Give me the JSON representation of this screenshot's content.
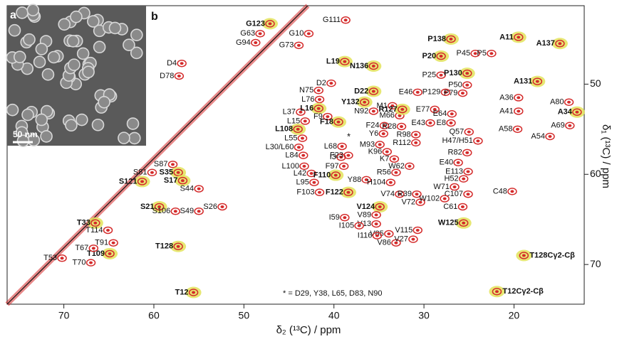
{
  "chart_data": {
    "type": "scatter",
    "xlabel": "δ₂ (¹³C) / ppm",
    "ylabel": "δ₁ (¹³C) / ppm",
    "xlim": [
      76.3,
      12.2
    ],
    "ylim": [
      41.3,
      74.4
    ],
    "xticks": [
      70,
      60,
      50,
      40,
      30,
      20
    ],
    "yticks": [
      50,
      60,
      70
    ],
    "panel_labels": [
      "a",
      "b"
    ],
    "scale_bar": "50 nm",
    "star_label": "*",
    "note": "* = D29, Y38, L65, D83, N90",
    "color": "#d42a2a",
    "highlight_color": "#e3e35a",
    "points": [
      {
        "label": "G123",
        "x": 47.1,
        "y": 43.3,
        "bold": true
      },
      {
        "label": "G111",
        "x": 38.7,
        "y": 42.9
      },
      {
        "label": "G63",
        "x": 48.2,
        "y": 44.4
      },
      {
        "label": "G10",
        "x": 42.8,
        "y": 44.4
      },
      {
        "label": "G94",
        "x": 48.7,
        "y": 45.4
      },
      {
        "label": "G73",
        "x": 43.9,
        "y": 45.7
      },
      {
        "label": "D4",
        "x": 56.9,
        "y": 47.7
      },
      {
        "label": "L19",
        "x": 38.8,
        "y": 47.5,
        "bold": true
      },
      {
        "label": "N136",
        "x": 35.6,
        "y": 48.0,
        "bold": true
      },
      {
        "label": "D78",
        "x": 57.2,
        "y": 49.1
      },
      {
        "label": "D2",
        "x": 40.3,
        "y": 49.9
      },
      {
        "label": "N75",
        "x": 41.7,
        "y": 50.7
      },
      {
        "label": "D22",
        "x": 35.6,
        "y": 50.8,
        "bold": true
      },
      {
        "label": "L76",
        "x": 41.6,
        "y": 51.7
      },
      {
        "label": "M1",
        "x": 33.5,
        "y": 52.4
      },
      {
        "label": "Y132",
        "x": 36.6,
        "y": 52.0,
        "bold": true
      },
      {
        "label": "N92",
        "x": 35.6,
        "y": 53.0
      },
      {
        "label": "M66",
        "x": 32.7,
        "y": 53.5
      },
      {
        "label": "L37",
        "x": 43.7,
        "y": 53.1
      },
      {
        "label": "L16",
        "x": 41.7,
        "y": 52.7,
        "bold": true
      },
      {
        "label": "F9",
        "x": 40.7,
        "y": 53.6
      },
      {
        "label": "F18",
        "x": 39.5,
        "y": 54.2,
        "bold": true
      },
      {
        "label": "L15",
        "x": 43.2,
        "y": 54.1
      },
      {
        "label": "F24",
        "x": 34.4,
        "y": 54.6
      },
      {
        "label": "Y6",
        "x": 34.5,
        "y": 55.5
      },
      {
        "label": "L108",
        "x": 44.0,
        "y": 55.0,
        "bold": true
      },
      {
        "label": "L55",
        "x": 43.5,
        "y": 56.0
      },
      {
        "label": "L30/L60",
        "x": 43.9,
        "y": 57.0
      },
      {
        "label": "L84",
        "x": 43.4,
        "y": 57.9
      },
      {
        "label": "L100",
        "x": 43.3,
        "y": 59.1
      },
      {
        "label": "L42",
        "x": 42.5,
        "y": 59.9
      },
      {
        "label": "L95",
        "x": 42.2,
        "y": 60.9
      },
      {
        "label": "I3",
        "x": 39.2,
        "y": 58.1
      },
      {
        "label": "L68",
        "x": 39.1,
        "y": 56.9
      },
      {
        "label": "F23",
        "x": 38.4,
        "y": 57.9
      },
      {
        "label": "F97",
        "x": 38.9,
        "y": 59.1
      },
      {
        "label": "F110",
        "x": 39.8,
        "y": 60.1,
        "bold": true
      },
      {
        "label": "F103",
        "x": 41.6,
        "y": 62.0
      },
      {
        "label": "F122",
        "x": 38.4,
        "y": 62.0,
        "bold": true
      },
      {
        "label": "Y88",
        "x": 36.4,
        "y": 60.6
      },
      {
        "label": "M93",
        "x": 34.9,
        "y": 56.7
      },
      {
        "label": "K96",
        "x": 34.1,
        "y": 57.5
      },
      {
        "label": "K7",
        "x": 33.3,
        "y": 58.3
      },
      {
        "label": "R56",
        "x": 33.1,
        "y": 59.8
      },
      {
        "label": "H104",
        "x": 33.7,
        "y": 60.9
      },
      {
        "label": "V74",
        "x": 32.7,
        "y": 62.2
      },
      {
        "label": "R28",
        "x": 32.5,
        "y": 54.7
      },
      {
        "label": "R98",
        "x": 30.9,
        "y": 55.6
      },
      {
        "label": "R112",
        "x": 30.9,
        "y": 56.5
      },
      {
        "label": "W62",
        "x": 31.6,
        "y": 59.1
      },
      {
        "label": "R127",
        "x": 32.4,
        "y": 52.8,
        "bold": true
      },
      {
        "label": "E46",
        "x": 30.7,
        "y": 50.9
      },
      {
        "label": "E77",
        "x": 28.8,
        "y": 52.8
      },
      {
        "label": "E64",
        "x": 26.9,
        "y": 53.3
      },
      {
        "label": "E43",
        "x": 29.3,
        "y": 54.3
      },
      {
        "label": "E8",
        "x": 27.0,
        "y": 54.3
      },
      {
        "label": "Q57",
        "x": 25.0,
        "y": 55.3
      },
      {
        "label": "H47/H51",
        "x": 24.0,
        "y": 56.3
      },
      {
        "label": "R82",
        "x": 25.2,
        "y": 57.6
      },
      {
        "label": "E40",
        "x": 26.2,
        "y": 58.7
      },
      {
        "label": "E113",
        "x": 25.1,
        "y": 59.7
      },
      {
        "label": "H52",
        "x": 25.6,
        "y": 60.5
      },
      {
        "label": "W71",
        "x": 26.6,
        "y": 61.4
      },
      {
        "label": "C107",
        "x": 25.1,
        "y": 62.2
      },
      {
        "label": "R39",
        "x": 30.8,
        "y": 62.2
      },
      {
        "label": "V72",
        "x": 30.4,
        "y": 63.1
      },
      {
        "label": "W102",
        "x": 27.7,
        "y": 62.7
      },
      {
        "label": "C61",
        "x": 25.7,
        "y": 63.6
      },
      {
        "label": "W125",
        "x": 25.6,
        "y": 65.4,
        "bold": true
      },
      {
        "label": "V124",
        "x": 34.9,
        "y": 63.6,
        "bold": true
      },
      {
        "label": "V89",
        "x": 35.3,
        "y": 64.5
      },
      {
        "label": "V13",
        "x": 35.3,
        "y": 65.5
      },
      {
        "label": "V85",
        "x": 33.9,
        "y": 66.6
      },
      {
        "label": "V86",
        "x": 33.1,
        "y": 67.6
      },
      {
        "label": "V27",
        "x": 31.2,
        "y": 67.2
      },
      {
        "label": "V115",
        "x": 30.7,
        "y": 66.2
      },
      {
        "label": "I59",
        "x": 38.8,
        "y": 64.8
      },
      {
        "label": "I105",
        "x": 37.2,
        "y": 65.7
      },
      {
        "label": "I116",
        "x": 35.2,
        "y": 66.8
      },
      {
        "label": "P138",
        "x": 27.0,
        "y": 45.0,
        "bold": true
      },
      {
        "label": "P20",
        "x": 28.1,
        "y": 46.9,
        "bold": true
      },
      {
        "label": "P45",
        "x": 24.3,
        "y": 46.6
      },
      {
        "label": "P5",
        "x": 22.5,
        "y": 46.6
      },
      {
        "label": "P25",
        "x": 28.1,
        "y": 49.0
      },
      {
        "label": "P130",
        "x": 25.2,
        "y": 48.8,
        "bold": true
      },
      {
        "label": "P50",
        "x": 25.2,
        "y": 50.1
      },
      {
        "label": "P129",
        "x": 27.6,
        "y": 50.9
      },
      {
        "label": "P79",
        "x": 25.7,
        "y": 51.0
      },
      {
        "label": "A11",
        "x": 19.5,
        "y": 44.8,
        "bold": true
      },
      {
        "label": "A137",
        "x": 14.9,
        "y": 45.5,
        "bold": true
      },
      {
        "label": "A131",
        "x": 17.4,
        "y": 49.7,
        "bold": true
      },
      {
        "label": "A36",
        "x": 19.5,
        "y": 51.5
      },
      {
        "label": "A80",
        "x": 13.9,
        "y": 52.0
      },
      {
        "label": "A41",
        "x": 19.5,
        "y": 53.0
      },
      {
        "label": "A34",
        "x": 13.0,
        "y": 53.1,
        "bold": true
      },
      {
        "label": "A69",
        "x": 13.8,
        "y": 54.6
      },
      {
        "label": "A58",
        "x": 19.6,
        "y": 55.0
      },
      {
        "label": "A54",
        "x": 16.0,
        "y": 55.8
      },
      {
        "label": "C48",
        "x": 20.2,
        "y": 61.9
      },
      {
        "label": "T128Cγ2-Cβ",
        "x": 18.9,
        "y": 69.0,
        "bold": true
      },
      {
        "label": "T12Cγ2-Cβ",
        "x": 21.9,
        "y": 73.0,
        "bold": true
      },
      {
        "label": "S81",
        "x": 60.2,
        "y": 59.8
      },
      {
        "label": "S121",
        "x": 61.3,
        "y": 60.8,
        "bold": true
      },
      {
        "label": "S87",
        "x": 57.9,
        "y": 58.9
      },
      {
        "label": "S35",
        "x": 57.3,
        "y": 59.8,
        "bold": true
      },
      {
        "label": "S17",
        "x": 56.8,
        "y": 60.7,
        "bold": true
      },
      {
        "label": "S44",
        "x": 55.0,
        "y": 61.6
      },
      {
        "label": "S21",
        "x": 59.4,
        "y": 63.6,
        "bold": true
      },
      {
        "label": "S106",
        "x": 57.6,
        "y": 64.1
      },
      {
        "label": "S49",
        "x": 55.0,
        "y": 64.1
      },
      {
        "label": "S26",
        "x": 52.4,
        "y": 63.6
      },
      {
        "label": "T33",
        "x": 66.5,
        "y": 65.4,
        "bold": true
      },
      {
        "label": "T114",
        "x": 65.1,
        "y": 66.2
      },
      {
        "label": "T91",
        "x": 64.5,
        "y": 67.6
      },
      {
        "label": "T109",
        "x": 64.9,
        "y": 68.8,
        "bold": true
      },
      {
        "label": "T67",
        "x": 66.7,
        "y": 68.2
      },
      {
        "label": "T53",
        "x": 70.2,
        "y": 69.3
      },
      {
        "label": "T70",
        "x": 67.0,
        "y": 69.8
      },
      {
        "label": "T128",
        "x": 57.3,
        "y": 68.0,
        "bold": true
      },
      {
        "label": "T12",
        "x": 55.6,
        "y": 73.1,
        "bold": true
      }
    ]
  }
}
